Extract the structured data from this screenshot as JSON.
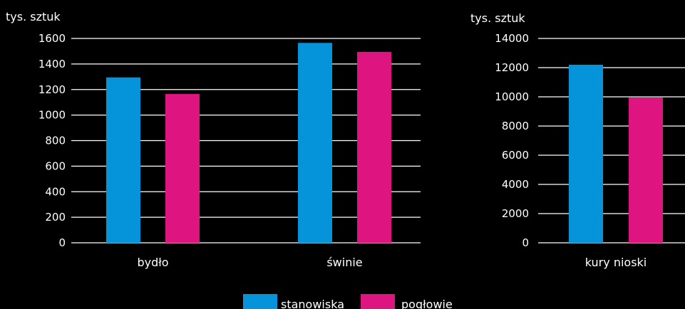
{
  "colors": {
    "background": "#000000",
    "text": "#ffffff",
    "gridline": "#ffffff",
    "stanowiska": "#0593d9",
    "poglowie": "#de1480"
  },
  "legend": {
    "items": [
      {
        "label": "stanowiska",
        "color": "#0593d9"
      },
      {
        "label": "pogłowie",
        "color": "#de1480"
      }
    ],
    "placement": "bottom-center"
  },
  "chart_data": [
    {
      "type": "bar",
      "unit_label": "tys. sztuk",
      "categories": [
        "bydło",
        "świnie"
      ],
      "series": [
        {
          "name": "stanowiska",
          "values": [
            1295,
            1565
          ]
        },
        {
          "name": "pogłowie",
          "values": [
            1165,
            1495
          ]
        }
      ],
      "yticks": [
        "0",
        "200",
        "400",
        "600",
        "800",
        "1000",
        "1200",
        "1400",
        "1600"
      ],
      "ylim": [
        0,
        1600
      ],
      "grid": true
    },
    {
      "type": "bar",
      "unit_label": "tys. sztuk",
      "categories": [
        "kury nioski"
      ],
      "series": [
        {
          "name": "stanowiska",
          "values": [
            12200
          ]
        },
        {
          "name": "pogłowie",
          "values": [
            9950
          ]
        }
      ],
      "yticks": [
        "0",
        "2000",
        "4000",
        "6000",
        "8000",
        "10000",
        "12000",
        "14000"
      ],
      "ylim": [
        0,
        14000
      ],
      "grid": true
    }
  ]
}
